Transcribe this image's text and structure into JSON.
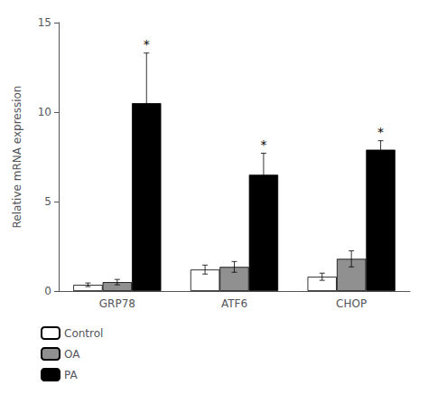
{
  "chart_data": {
    "type": "bar",
    "categories": [
      "GRP78",
      "ATF6",
      "CHOP"
    ],
    "ylabel": "Relative mRNA expression",
    "ylim": [
      0,
      15
    ],
    "yticks": [
      0,
      5,
      10,
      15
    ],
    "grid": false,
    "legend": "lower left",
    "series": [
      {
        "name": "Control",
        "color": "#ffffff",
        "values": [
          0.35,
          1.2,
          0.8
        ],
        "errors": [
          0.1,
          0.25,
          0.2
        ]
      },
      {
        "name": "OA",
        "color": "#909090",
        "values": [
          0.5,
          1.35,
          1.8
        ],
        "errors": [
          0.15,
          0.3,
          0.45
        ]
      },
      {
        "name": "PA",
        "color": "#000000",
        "values": [
          10.5,
          6.5,
          7.9
        ],
        "errors": [
          2.8,
          1.2,
          0.5
        ]
      }
    ],
    "annotations": [
      {
        "text": "*",
        "category": "GRP78",
        "series": "PA"
      },
      {
        "text": "*",
        "category": "ATF6",
        "series": "PA"
      },
      {
        "text": "*",
        "category": "CHOP",
        "series": "PA"
      }
    ]
  }
}
